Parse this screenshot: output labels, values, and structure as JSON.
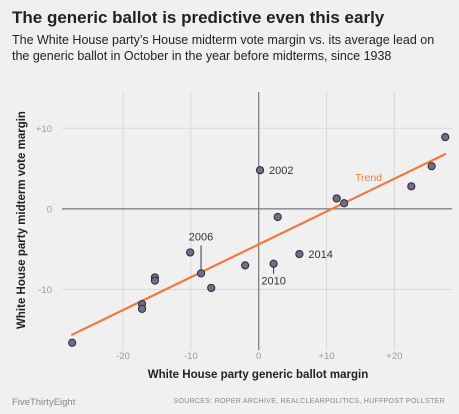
{
  "header": {
    "title": "The generic ballot is predictive even this early",
    "subtitle": "The White House party’s House midterm vote margin vs. its average lead on the generic ballot in October in the year before midterms, since 1938"
  },
  "footer": {
    "brand": "FiveThirtyEight",
    "sources": "SOURCES: ROPER ARCHIVE, REALCLEARPOLITICS, HUFFPOST POLLSTER"
  },
  "colors": {
    "background": "#f0f0f0",
    "grid": "#d9d9d9",
    "zero_axis": "#777777",
    "point_fill": "#6f6e86",
    "point_stroke": "#2a2a3a",
    "trend": "#f07a3d"
  },
  "chart_data": {
    "type": "scatter",
    "xlabel": "White House party generic ballot margin",
    "ylabel": "White House party midterm vote margin",
    "xlim": [
      -29,
      28.5
    ],
    "ylim": [
      -17.5,
      14.5
    ],
    "xticks": [
      {
        "value": -20,
        "label": "-20"
      },
      {
        "value": -10,
        "label": "-10"
      },
      {
        "value": 0,
        "label": "0"
      },
      {
        "value": 10,
        "label": "+10"
      },
      {
        "value": 20,
        "label": "+20"
      }
    ],
    "yticks": [
      {
        "value": 10,
        "label": "+10"
      },
      {
        "value": 0,
        "label": "0"
      },
      {
        "value": -10,
        "label": "-10"
      }
    ],
    "grid": true,
    "points": [
      {
        "x": -27.5,
        "y": -16.6
      },
      {
        "x": -17.2,
        "y": -11.8
      },
      {
        "x": -17.2,
        "y": -12.4
      },
      {
        "x": -15.3,
        "y": -8.5
      },
      {
        "x": -15.3,
        "y": -8.9
      },
      {
        "x": -10.1,
        "y": -5.4
      },
      {
        "x": -8.5,
        "y": -8.0,
        "label": "2006"
      },
      {
        "x": -7.0,
        "y": -9.8
      },
      {
        "x": -2.0,
        "y": -7.0
      },
      {
        "x": 0.2,
        "y": 4.8,
        "label": "2002"
      },
      {
        "x": 2.2,
        "y": -6.8,
        "label": "2010"
      },
      {
        "x": 2.8,
        "y": -1.0
      },
      {
        "x": 6.0,
        "y": -5.6,
        "label": "2014"
      },
      {
        "x": 11.5,
        "y": 1.3
      },
      {
        "x": 12.6,
        "y": 0.7
      },
      {
        "x": 22.5,
        "y": 2.8
      },
      {
        "x": 25.5,
        "y": 5.3
      },
      {
        "x": 27.5,
        "y": 8.9
      }
    ],
    "trend": {
      "name": "Trend",
      "x": [
        -27.5,
        27.5
      ],
      "y": [
        -15.6,
        6.8
      ]
    }
  }
}
